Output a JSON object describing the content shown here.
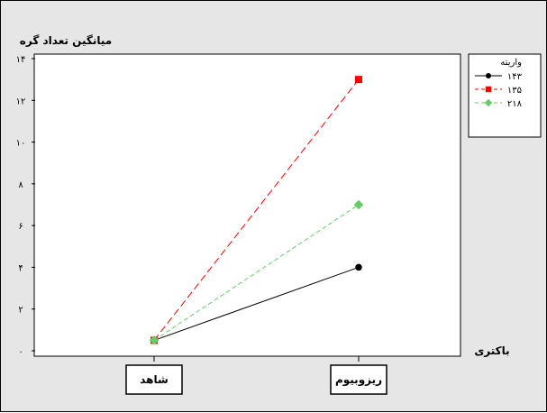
{
  "chart_data": {
    "type": "line",
    "ylabel": "میانگین تعداد گره",
    "xlabel": "باکتری",
    "categories": [
      "شاهد",
      "ریزوبیوم"
    ],
    "ylim": [
      0,
      14
    ],
    "yticks": [
      0,
      2,
      4,
      6,
      8,
      10,
      12,
      14
    ],
    "ytick_labels": [
      "۰",
      "۲",
      "۴",
      "۶",
      "۸",
      "۱۰",
      "۱۲",
      "۱۴"
    ],
    "legend": {
      "title": "واریته",
      "placement": "right"
    },
    "series": [
      {
        "name": "۱۴۳",
        "values": [
          0.5,
          4.0
        ],
        "color": "#000000",
        "style": "solid",
        "marker": "circle"
      },
      {
        "name": "۱۳۵",
        "values": [
          0.5,
          13.0
        ],
        "color": "#ff0000",
        "style": "dashed",
        "marker": "square"
      },
      {
        "name": "۲۱۸",
        "values": [
          0.5,
          7.0
        ],
        "color": "#66cc66",
        "style": "dashed",
        "marker": "diamond"
      }
    ]
  }
}
